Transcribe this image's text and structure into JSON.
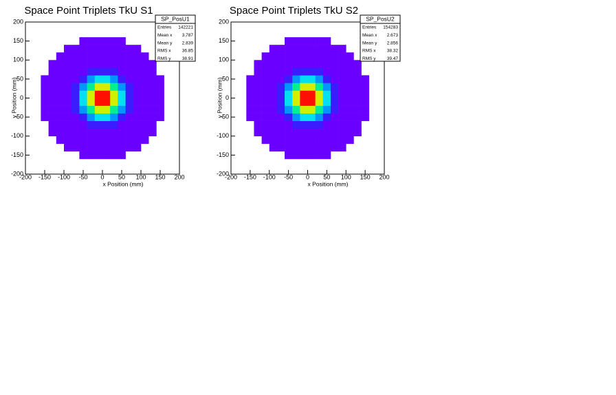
{
  "chart_data": [
    {
      "type": "heatmap",
      "title": "Space Point Triplets TkU S1",
      "x_label": "x Position (mm)",
      "y_label": "y Position (mm)",
      "xlim": [
        -200,
        200
      ],
      "ylim": [
        -200,
        200
      ],
      "xticks": [
        -200,
        -150,
        -100,
        -50,
        0,
        50,
        100,
        150,
        200
      ],
      "yticks": [
        -200,
        -150,
        -100,
        -50,
        0,
        50,
        100,
        150,
        200
      ],
      "palette": [
        "#6a00ff",
        "#3a1cff",
        "#0a4cff",
        "#0096ff",
        "#00e0f0",
        "#00f090",
        "#60ff20",
        "#d0f000",
        "#ff9000",
        "#ff1000"
      ],
      "stats": {
        "title": "SP_PosU1",
        "rows": [
          [
            "Entries",
            142221
          ],
          [
            "Mean x",
            3.787
          ],
          [
            "Mean y",
            2.839
          ],
          [
            "RMS x",
            36.85
          ],
          [
            "RMS y",
            38.91
          ]
        ]
      },
      "values": [
        [
          0,
          0,
          0,
          0,
          0,
          0,
          0,
          0,
          0,
          0,
          0,
          0,
          0,
          0,
          0,
          0,
          0,
          0,
          0,
          0
        ],
        [
          0,
          0,
          0,
          0,
          0,
          0,
          0,
          0,
          0,
          0,
          0,
          0,
          0,
          0,
          0,
          0,
          0,
          0,
          0,
          0
        ],
        [
          0,
          0,
          0,
          0,
          0,
          0,
          0,
          60,
          60,
          60,
          60,
          60,
          60,
          0,
          0,
          0,
          0,
          0,
          0,
          0
        ],
        [
          0,
          0,
          0,
          0,
          0,
          60,
          62,
          65,
          70,
          73,
          73,
          70,
          65,
          62,
          60,
          0,
          0,
          0,
          0,
          0
        ],
        [
          0,
          0,
          0,
          0,
          60,
          64,
          73,
          92,
          117,
          136,
          136,
          117,
          92,
          73,
          64,
          60,
          0,
          0,
          0,
          0
        ],
        [
          0,
          0,
          0,
          60,
          64,
          78,
          117,
          198,
          307,
          391,
          391,
          307,
          198,
          117,
          78,
          64,
          60,
          0,
          0,
          0
        ],
        [
          0,
          0,
          0,
          62,
          73,
          117,
          244,
          502,
          854,
          1123,
          1123,
          854,
          502,
          244,
          117,
          73,
          62,
          0,
          0,
          0
        ],
        [
          0,
          0,
          60,
          65,
          92,
          198,
          502,
          1121,
          1965,
          2611,
          2611,
          1965,
          1121,
          502,
          198,
          92,
          65,
          60,
          0,
          0
        ],
        [
          0,
          0,
          60,
          70,
          117,
          307,
          854,
          1965,
          3481,
          4641,
          4641,
          3481,
          1965,
          854,
          307,
          117,
          70,
          60,
          0,
          0
        ],
        [
          0,
          0,
          60,
          73,
          136,
          391,
          1123,
          2611,
          4641,
          6193,
          6193,
          4641,
          2611,
          1123,
          391,
          136,
          73,
          60,
          0,
          0
        ],
        [
          0,
          0,
          60,
          73,
          136,
          391,
          1123,
          2611,
          4641,
          6193,
          6193,
          4641,
          2611,
          1123,
          391,
          136,
          73,
          60,
          0,
          0
        ],
        [
          0,
          0,
          60,
          70,
          117,
          307,
          854,
          1965,
          3481,
          4641,
          4641,
          3481,
          1965,
          854,
          307,
          117,
          70,
          60,
          0,
          0
        ],
        [
          0,
          0,
          60,
          65,
          92,
          198,
          502,
          1121,
          1965,
          2611,
          2611,
          1965,
          1121,
          502,
          198,
          92,
          65,
          60,
          0,
          0
        ],
        [
          0,
          0,
          0,
          62,
          73,
          117,
          244,
          502,
          854,
          1123,
          1123,
          854,
          502,
          244,
          117,
          73,
          62,
          0,
          0,
          0
        ],
        [
          0,
          0,
          0,
          60,
          64,
          78,
          117,
          198,
          307,
          391,
          391,
          307,
          198,
          117,
          78,
          64,
          60,
          0,
          0,
          0
        ],
        [
          0,
          0,
          0,
          0,
          60,
          64,
          73,
          92,
          117,
          136,
          136,
          117,
          92,
          73,
          64,
          60,
          0,
          0,
          0,
          0
        ],
        [
          0,
          0,
          0,
          0,
          0,
          60,
          62,
          65,
          70,
          73,
          73,
          70,
          65,
          62,
          60,
          0,
          0,
          0,
          0,
          0
        ],
        [
          0,
          0,
          0,
          0,
          0,
          0,
          0,
          60,
          60,
          60,
          60,
          60,
          60,
          0,
          0,
          0,
          0,
          0,
          0,
          0
        ],
        [
          0,
          0,
          0,
          0,
          0,
          0,
          0,
          0,
          0,
          0,
          0,
          0,
          0,
          0,
          0,
          0,
          0,
          0,
          0,
          0
        ],
        [
          0,
          0,
          0,
          0,
          0,
          0,
          0,
          0,
          0,
          0,
          0,
          0,
          0,
          0,
          0,
          0,
          0,
          0,
          0,
          0
        ]
      ]
    },
    {
      "type": "heatmap",
      "title": "Space Point Triplets TkU S2",
      "x_label": "x Position (mm)",
      "y_label": "y Position (mm)",
      "xlim": [
        -200,
        200
      ],
      "ylim": [
        -200,
        200
      ],
      "xticks": [
        -200,
        -150,
        -100,
        -50,
        0,
        50,
        100,
        150,
        200
      ],
      "yticks": [
        -200,
        -150,
        -100,
        -50,
        0,
        50,
        100,
        150,
        200
      ],
      "palette": [
        "#6a00ff",
        "#3a1cff",
        "#0a4cff",
        "#0096ff",
        "#00e0f0",
        "#00f090",
        "#60ff20",
        "#d0f000",
        "#ff9000",
        "#ff1000"
      ],
      "stats": {
        "title": "SP_PosU2",
        "rows": [
          [
            "Entries",
            154283
          ],
          [
            "Mean x",
            2.673
          ],
          [
            "Mean y",
            2.856
          ],
          [
            "RMS x",
            38.32
          ],
          [
            "RMS y",
            39.47
          ]
        ]
      },
      "values": [
        [
          0,
          0,
          0,
          0,
          0,
          0,
          0,
          0,
          0,
          0,
          0,
          0,
          0,
          0,
          0,
          0,
          0,
          0,
          0,
          0
        ],
        [
          0,
          0,
          0,
          0,
          0,
          0,
          0,
          0,
          0,
          0,
          0,
          0,
          0,
          0,
          0,
          0,
          0,
          0,
          0,
          0
        ],
        [
          0,
          0,
          0,
          0,
          0,
          0,
          0,
          60,
          60,
          60,
          60,
          60,
          60,
          0,
          0,
          0,
          0,
          0,
          0,
          0
        ],
        [
          0,
          0,
          0,
          0,
          0,
          60,
          62,
          65,
          70,
          73,
          73,
          70,
          65,
          62,
          60,
          0,
          0,
          0,
          0,
          0
        ],
        [
          0,
          0,
          0,
          0,
          60,
          64,
          73,
          92,
          117,
          136,
          136,
          117,
          92,
          73,
          64,
          60,
          0,
          0,
          0,
          0
        ],
        [
          0,
          0,
          0,
          60,
          64,
          78,
          117,
          198,
          307,
          391,
          391,
          307,
          198,
          117,
          78,
          64,
          60,
          0,
          0,
          0
        ],
        [
          0,
          0,
          0,
          62,
          73,
          117,
          244,
          502,
          854,
          1123,
          1123,
          854,
          502,
          244,
          117,
          73,
          62,
          0,
          0,
          0
        ],
        [
          0,
          0,
          60,
          65,
          92,
          198,
          502,
          1121,
          1965,
          2611,
          2611,
          1965,
          1121,
          502,
          198,
          92,
          65,
          60,
          0,
          0
        ],
        [
          0,
          0,
          60,
          70,
          117,
          307,
          854,
          1965,
          3481,
          4641,
          4641,
          3481,
          1965,
          854,
          307,
          117,
          70,
          60,
          0,
          0
        ],
        [
          0,
          0,
          60,
          73,
          136,
          391,
          1123,
          2611,
          4641,
          6193,
          6193,
          4641,
          2611,
          1123,
          391,
          136,
          73,
          60,
          0,
          0
        ],
        [
          0,
          0,
          60,
          73,
          136,
          391,
          1123,
          2611,
          4641,
          6193,
          6193,
          4641,
          2611,
          1123,
          391,
          136,
          73,
          60,
          0,
          0
        ],
        [
          0,
          0,
          60,
          70,
          117,
          307,
          854,
          1965,
          3481,
          4641,
          4641,
          3481,
          1965,
          854,
          307,
          117,
          70,
          60,
          0,
          0
        ],
        [
          0,
          0,
          60,
          65,
          92,
          198,
          502,
          1121,
          1965,
          2611,
          2611,
          1965,
          1121,
          502,
          198,
          92,
          65,
          60,
          0,
          0
        ],
        [
          0,
          0,
          0,
          62,
          73,
          117,
          244,
          502,
          854,
          1123,
          1123,
          854,
          502,
          244,
          117,
          73,
          62,
          0,
          0,
          0
        ],
        [
          0,
          0,
          0,
          60,
          64,
          78,
          117,
          198,
          307,
          391,
          391,
          307,
          198,
          117,
          78,
          64,
          60,
          0,
          0,
          0
        ],
        [
          0,
          0,
          0,
          0,
          60,
          64,
          73,
          92,
          117,
          136,
          136,
          117,
          92,
          73,
          64,
          60,
          0,
          0,
          0,
          0
        ],
        [
          0,
          0,
          0,
          0,
          0,
          60,
          62,
          65,
          70,
          73,
          73,
          70,
          65,
          62,
          60,
          0,
          0,
          0,
          0,
          0
        ],
        [
          0,
          0,
          0,
          0,
          0,
          0,
          0,
          60,
          60,
          60,
          60,
          60,
          60,
          0,
          0,
          0,
          0,
          0,
          0,
          0
        ],
        [
          0,
          0,
          0,
          0,
          0,
          0,
          0,
          0,
          0,
          0,
          0,
          0,
          0,
          0,
          0,
          0,
          0,
          0,
          0,
          0
        ],
        [
          0,
          0,
          0,
          0,
          0,
          0,
          0,
          0,
          0,
          0,
          0,
          0,
          0,
          0,
          0,
          0,
          0,
          0,
          0,
          0
        ]
      ]
    }
  ]
}
